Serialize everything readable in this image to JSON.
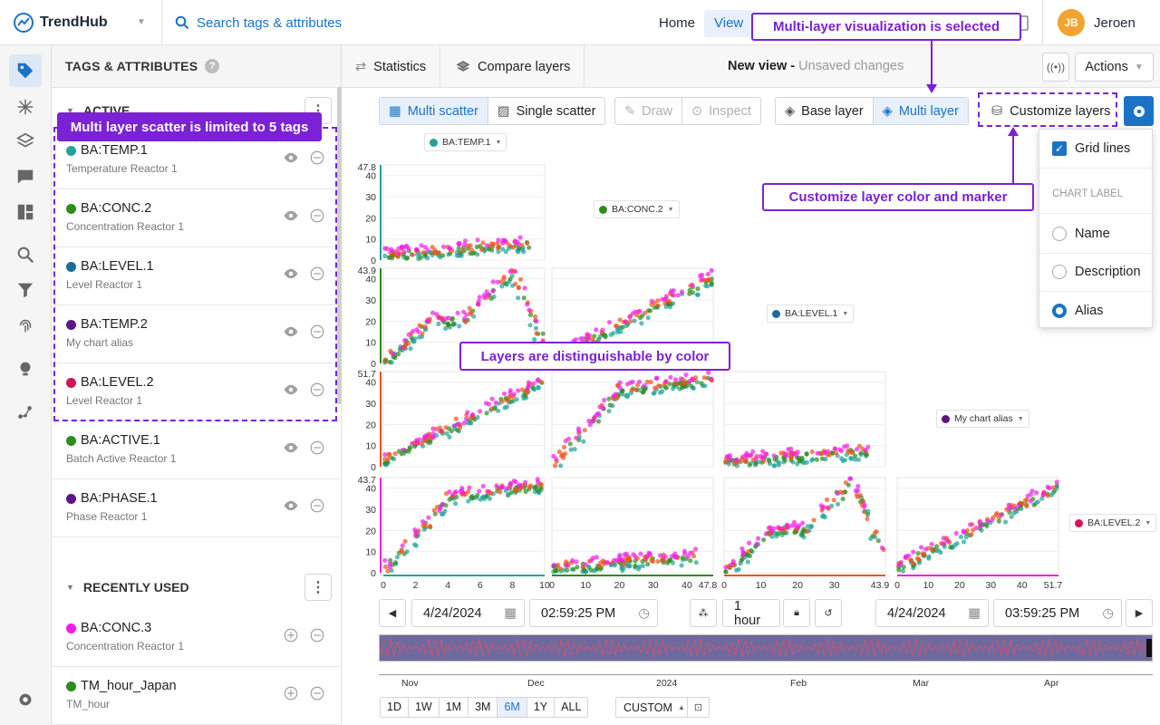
{
  "app": {
    "name": "TrendHub"
  },
  "topbar": {
    "search_placeholder": "Search tags & attributes",
    "nav": [
      {
        "label": "Home"
      },
      {
        "label": "View"
      }
    ],
    "user": {
      "initials": "JB",
      "name": "Jeroen"
    }
  },
  "sidebar": {
    "title": "TAGS & ATTRIBUTES",
    "active_label": "ACTIVE",
    "active": [
      {
        "name": "BA:TEMP.1",
        "desc": "Temperature Reactor 1",
        "color": "#21a39a"
      },
      {
        "name": "BA:CONC.2",
        "desc": "Concentration Reactor 1",
        "color": "#2e8b1d"
      },
      {
        "name": "BA:LEVEL.1",
        "desc": "Level Reactor 1",
        "color": "#1e6a9e"
      },
      {
        "name": "BA:TEMP.2",
        "desc": "My chart alias",
        "color": "#5b1584"
      },
      {
        "name": "BA:LEVEL.2",
        "desc": "Level Reactor 1",
        "color": "#d4145a"
      },
      {
        "name": "BA:ACTIVE.1",
        "desc": "Batch Active Reactor 1",
        "color": "#2e8b1d"
      },
      {
        "name": "BA:PHASE.1",
        "desc": "Phase Reactor 1",
        "color": "#5b1584"
      }
    ],
    "recent_label": "RECENTLY USED",
    "recent": [
      {
        "name": "BA:CONC.3",
        "desc": "Concentration Reactor 1",
        "color": "#f21ce8"
      },
      {
        "name": "TM_hour_Japan",
        "desc": "TM_hour",
        "color": "#2e8b1d"
      }
    ]
  },
  "toolbar": {
    "statistics": "Statistics",
    "compare": "Compare layers",
    "view_title": "New view",
    "unsaved": "Unsaved changes",
    "actions": "Actions"
  },
  "chart_controls": {
    "multi_scatter": "Multi scatter",
    "single_scatter": "Single scatter",
    "draw": "Draw",
    "inspect": "Inspect",
    "base_layer": "Base layer",
    "multi_layer": "Multi layer",
    "customize": "Customize layers"
  },
  "dropdown": {
    "grid_lines": "Grid lines",
    "chart_label": "CHART LABEL",
    "options": [
      "Name",
      "Description",
      "Alias"
    ],
    "selected": "Alias"
  },
  "tag_chips": [
    "BA:TEMP.1",
    "BA:CONC.2",
    "BA:LEVEL.1",
    "My chart alias",
    "BA:LEVEL.2"
  ],
  "callouts": {
    "multi_layer_selected": "Multi-layer visualization is selected",
    "limited": "Multi layer scatter is limited to 5 tags",
    "customize": "Customize layer color and marker",
    "distinguishable": "Layers are distinguishable by color"
  },
  "timebar": {
    "start_date": "4/24/2024",
    "start_time": "02:59:25 PM",
    "interval": "1 hour",
    "end_date": "4/24/2024",
    "end_time": "03:59:25 PM",
    "axis_labels": [
      "Nov",
      "Dec",
      "2024",
      "Feb",
      "Mar",
      "Apr"
    ],
    "ranges": [
      "1D",
      "1W",
      "1M",
      "3M",
      "6M",
      "1Y",
      "ALL"
    ],
    "selected_range": "6M",
    "custom": "CUSTOM"
  },
  "chart_data": {
    "type": "scatter",
    "title": "",
    "layers": [
      "#21a39a",
      "#2e8b1d",
      "#f0521c",
      "#f21ce8"
    ],
    "grid": true,
    "axis_max": {
      "BA:TEMP.1": 10,
      "BA:CONC.2": 47.8,
      "BA:LEVEL.1": 43.9,
      "My chart alias": 51.7,
      "BA:LEVEL.2": 43.7
    },
    "row_ticks": [
      {
        "max_label": "47.8",
        "ticks": [
          40,
          30,
          20,
          10,
          0
        ]
      },
      {
        "max_label": "43.9",
        "ticks": [
          40,
          30,
          20,
          10,
          0
        ]
      },
      {
        "max_label": "51.7",
        "ticks": [
          40,
          30,
          20,
          10,
          0
        ]
      },
      {
        "max_label": "43.7",
        "ticks": [
          40,
          30,
          20,
          10,
          0
        ]
      }
    ],
    "col_ticks": [
      {
        "ticks": [
          0,
          2,
          4,
          6,
          8,
          10
        ]
      },
      {
        "ticks": [
          0,
          10,
          20,
          30,
          40
        ],
        "max_label": "47.8"
      },
      {
        "ticks": [
          0,
          10,
          20,
          30
        ],
        "max_label": "43.9"
      },
      {
        "ticks": [
          0,
          10,
          20,
          30,
          40
        ],
        "max_label": "51.7"
      }
    ]
  }
}
